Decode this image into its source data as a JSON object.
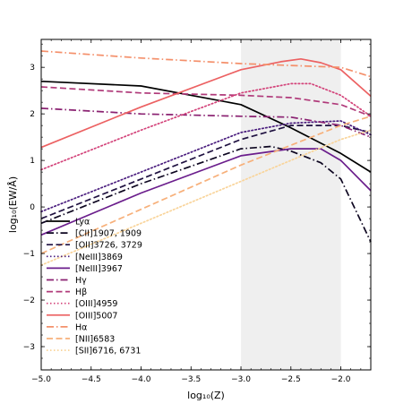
{
  "chart_data": {
    "type": "line",
    "title": "",
    "xlabel": "log₁₀(Z)",
    "ylabel": "log₁₀(EW/Å)",
    "xlim": [
      -5.0,
      -1.7
    ],
    "ylim": [
      -3.5,
      3.6
    ],
    "xticks": [
      -5.0,
      -4.5,
      -4.0,
      -3.5,
      -3.0,
      -2.5,
      -2.0
    ],
    "xtick_labels": [
      "−5.0",
      "−4.5",
      "−4.0",
      "−3.5",
      "−3.0",
      "−2.5",
      "−2.0"
    ],
    "yticks": [
      -3,
      -2,
      -1,
      0,
      1,
      2,
      3
    ],
    "ytick_labels": [
      "−3",
      "−2",
      "−1",
      "0",
      "1",
      "2",
      "3"
    ],
    "shaded_band": [
      -3.0,
      -2.0
    ],
    "grid": false,
    "legend_position": "lower-left",
    "series": [
      {
        "name": "Lyα",
        "color": "#000000",
        "style": "solid",
        "x": [
          -5.0,
          -4.0,
          -3.0,
          -2.5,
          -2.0,
          -1.7
        ],
        "y": [
          2.7,
          2.6,
          2.2,
          1.7,
          1.15,
          0.75
        ]
      },
      {
        "name": "[CII]1907, 1909",
        "color": "#0d0620",
        "style": "dashdot",
        "x": [
          -5.0,
          -4.0,
          -3.0,
          -2.7,
          -2.5,
          -2.2,
          -2.0,
          -1.7
        ],
        "y": [
          -0.35,
          0.5,
          1.25,
          1.3,
          1.2,
          0.95,
          0.6,
          -0.75
        ]
      },
      {
        "name": "[OII]3726, 3729",
        "color": "#1f1140",
        "style": "dashed",
        "x": [
          -5.0,
          -4.0,
          -3.0,
          -2.5,
          -2.0,
          -1.7
        ],
        "y": [
          -0.25,
          0.6,
          1.45,
          1.75,
          1.75,
          1.6
        ]
      },
      {
        "name": "[NeIII]3869",
        "color": "#4a1d7e",
        "style": "dotted",
        "x": [
          -5.0,
          -4.0,
          -3.0,
          -2.5,
          -2.0,
          -1.7
        ],
        "y": [
          -0.1,
          0.75,
          1.6,
          1.8,
          1.85,
          1.55
        ]
      },
      {
        "name": "[NeIII]3967",
        "color": "#6b1e8c",
        "style": "solid",
        "x": [
          -5.0,
          -4.0,
          -3.0,
          -2.5,
          -2.2,
          -2.0,
          -1.7
        ],
        "y": [
          -0.6,
          0.3,
          1.1,
          1.25,
          1.25,
          1.0,
          0.35
        ]
      },
      {
        "name": "Hγ",
        "color": "#8a2171",
        "style": "dashdot",
        "x": [
          -5.0,
          -4.0,
          -3.0,
          -2.5,
          -2.0,
          -1.7
        ],
        "y": [
          2.12,
          2.0,
          1.95,
          1.93,
          1.75,
          1.5
        ]
      },
      {
        "name": "Hβ",
        "color": "#b03a7a",
        "style": "dashed",
        "x": [
          -5.0,
          -4.0,
          -3.0,
          -2.5,
          -2.0,
          -1.7
        ],
        "y": [
          2.58,
          2.45,
          2.4,
          2.35,
          2.2,
          1.95
        ]
      },
      {
        "name": "[OIII]4959",
        "color": "#d3437a",
        "style": "dotted",
        "x": [
          -5.0,
          -4.0,
          -3.0,
          -2.5,
          -2.3,
          -2.0,
          -1.7
        ],
        "y": [
          0.8,
          1.65,
          2.45,
          2.65,
          2.65,
          2.4,
          1.95
        ]
      },
      {
        "name": "[OIII]5007",
        "color": "#ec6162",
        "style": "solid",
        "x": [
          -5.0,
          -4.0,
          -3.0,
          -2.6,
          -2.4,
          -2.2,
          -2.0,
          -1.7
        ],
        "y": [
          1.28,
          2.15,
          2.95,
          3.12,
          3.18,
          3.1,
          2.95,
          2.38
        ]
      },
      {
        "name": "Hα",
        "color": "#f4906b",
        "style": "dashdot",
        "x": [
          -5.0,
          -4.0,
          -3.0,
          -2.0,
          -1.7
        ],
        "y": [
          3.35,
          3.2,
          3.08,
          3.0,
          2.8
        ]
      },
      {
        "name": "[NII]6583",
        "color": "#f7b07a",
        "style": "dashed",
        "x": [
          -5.0,
          -4.0,
          -3.0,
          -2.0,
          -1.7
        ],
        "y": [
          -1.0,
          -0.05,
          0.9,
          1.75,
          1.95
        ]
      },
      {
        "name": "[SII]6716, 6731",
        "color": "#f9d49a",
        "style": "dotted",
        "x": [
          -5.0,
          -4.0,
          -3.0,
          -2.0,
          -1.7
        ],
        "y": [
          -1.25,
          -0.35,
          0.55,
          1.45,
          1.65
        ]
      }
    ]
  }
}
